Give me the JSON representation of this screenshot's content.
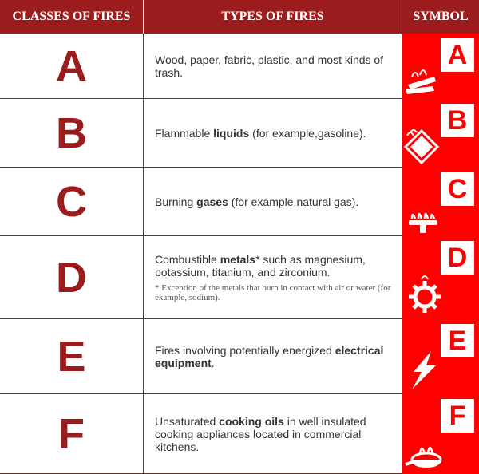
{
  "header": {
    "class_label": "CLASSES OF FIRES",
    "type_label": "TYPES OF FIRES",
    "symbol_label": "SYMBOL",
    "bg_color": "#9b1c1c",
    "text_color": "#ffffff",
    "font_size": 16
  },
  "columns": {
    "class_width": 180,
    "type_width": 324,
    "symbol_width": 96
  },
  "colors": {
    "border": "#9b1c1c",
    "class_letter": "#9b1c1c",
    "body_text": "#333333",
    "footnote_text": "#555555",
    "symbol_bg": "#ff0000",
    "symbol_fg": "#ffffff"
  },
  "fonts": {
    "class_letter_size": 54,
    "type_text_size": 14,
    "footnote_size": 11,
    "symbol_letter_size": 34
  },
  "rows": [
    {
      "letter": "A",
      "height": 82,
      "desc_html": "Wood, paper, fabric, plastic, and most kinds of trash.",
      "footnote": null,
      "symbol": {
        "letter": "A",
        "icon": "logs",
        "letter_pos": "top-right"
      }
    },
    {
      "letter": "B",
      "height": 86,
      "desc_html": "Flammable <b>liquids</b> (for example,gasoline).",
      "footnote": null,
      "symbol": {
        "letter": "B",
        "icon": "can",
        "letter_pos": "top-right"
      }
    },
    {
      "letter": "C",
      "height": 86,
      "desc_html": "Burning <b>gases</b> (for example,natural gas).",
      "footnote": null,
      "symbol": {
        "letter": "C",
        "icon": "burner",
        "letter_pos": "top-right"
      }
    },
    {
      "letter": "D",
      "height": 104,
      "desc_html": "Combustible <b>metals</b>* such as magnesium, potassium, titanium, and zirconium.",
      "footnote": "* Exception of the metals that burn in contact with air or water (for example, sodium).",
      "symbol": {
        "letter": "D",
        "icon": "gear",
        "letter_pos": "top-right"
      }
    },
    {
      "letter": "E",
      "height": 94,
      "desc_html": "Fires involving potentially energized <b>electrical equipment</b>.",
      "footnote": null,
      "symbol": {
        "letter": "E",
        "icon": "bolt",
        "letter_pos": "top-right"
      }
    },
    {
      "letter": "F",
      "height": 100,
      "desc_html": "Unsaturated <b>cooking oils</b> in well insulated cooking appliances located in commercial kitchens.",
      "footnote": null,
      "symbol": {
        "letter": "F",
        "icon": "pan",
        "letter_pos": "top-right"
      }
    }
  ]
}
